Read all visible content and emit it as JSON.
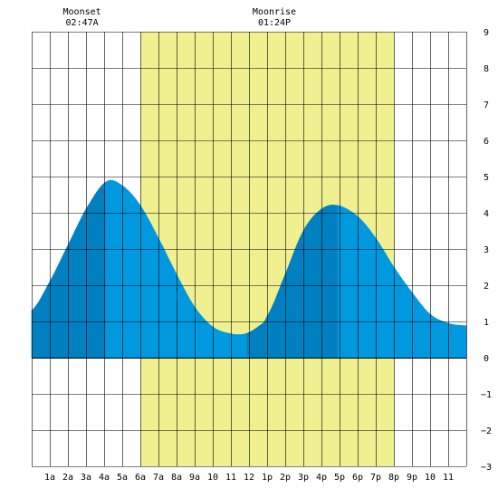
{
  "chart_data": {
    "type": "area",
    "title": "",
    "xlabel": "",
    "ylabel": "",
    "x_range_hours": [
      0,
      24
    ],
    "ylim": [
      -3,
      9
    ],
    "y_ticks": [
      "9",
      "8",
      "7",
      "6",
      "5",
      "4",
      "3",
      "2",
      "1",
      "0",
      "−1",
      "−2",
      "−3"
    ],
    "x_tick_labels": [
      "1a",
      "2a",
      "3a",
      "4a",
      "5a",
      "6a",
      "7a",
      "8a",
      "9a",
      "10",
      "11",
      "12",
      "1p",
      "2p",
      "3p",
      "4p",
      "5p",
      "6p",
      "7p",
      "8p",
      "9p",
      "10",
      "11"
    ],
    "daylight": {
      "start_hour": 6.0,
      "end_hour": 20.0,
      "color": "#f0f090"
    },
    "colors": {
      "water": "#0099e0",
      "water_rising": "#0080c0",
      "grid": "#000000"
    },
    "tide_series": {
      "name": "",
      "x": [
        0.0,
        1.0,
        2.0,
        3.0,
        4.1,
        5.0,
        6.0,
        7.0,
        8.0,
        9.0,
        10.0,
        11.0,
        11.8,
        12.5,
        13.0,
        14.0,
        15.0,
        16.0,
        16.9,
        18.0,
        19.0,
        20.0,
        21.0,
        22.0,
        23.0,
        24.0
      ],
      "y": [
        1.3,
        2.1,
        3.1,
        4.1,
        4.85,
        4.75,
        4.2,
        3.3,
        2.3,
        1.4,
        0.85,
        0.66,
        0.66,
        0.85,
        1.15,
        2.3,
        3.5,
        4.1,
        4.2,
        3.9,
        3.3,
        2.5,
        1.8,
        1.2,
        0.95,
        0.88
      ]
    },
    "tides": [
      {
        "type": "high",
        "hour": 4.1,
        "height": 4.85
      },
      {
        "type": "low",
        "hour": 11.9,
        "height": 0.66
      },
      {
        "type": "high",
        "hour": 16.9,
        "height": 4.2
      }
    ],
    "moon_events": [
      {
        "label": "Moonset",
        "time": "02:47A",
        "hour": 2.78
      },
      {
        "label": "Moonrise",
        "time": "01:24P",
        "hour": 13.4
      }
    ]
  }
}
